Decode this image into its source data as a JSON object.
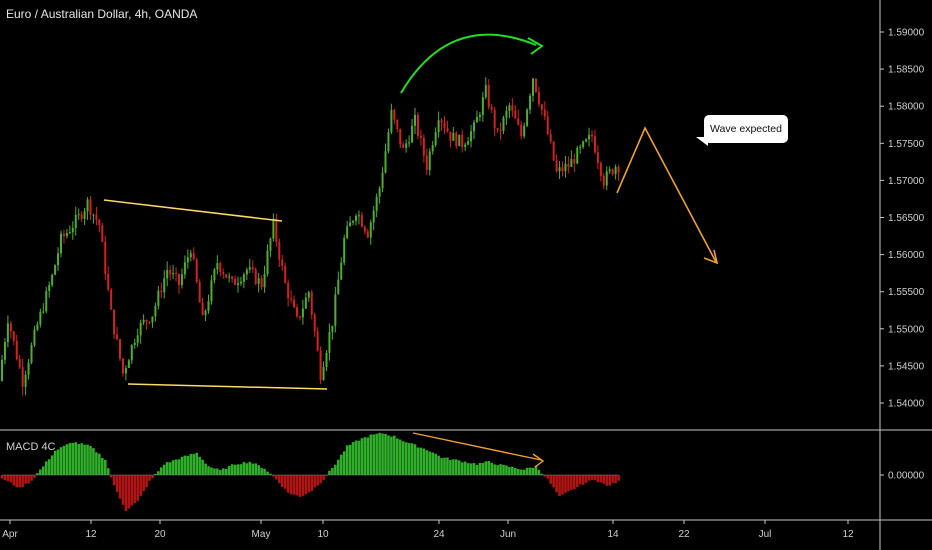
{
  "chart_data": {
    "type": "candlestick",
    "title": "Euro / Australian Dollar, 4h, OANDA",
    "price_axis": {
      "ticks": [
        "1.59000",
        "1.58500",
        "1.58000",
        "1.57500",
        "1.57000",
        "1.56500",
        "1.56000",
        "1.55500",
        "1.55000",
        "1.54500",
        "1.54000"
      ],
      "ylim": [
        1.537,
        1.5925
      ]
    },
    "macd_panel": {
      "label": "MACD 4C",
      "ticks": [
        "0.00000"
      ]
    },
    "time_axis": {
      "ticks": [
        "Apr",
        "12",
        "20",
        "May",
        "10",
        "24",
        "Jun",
        "14",
        "22",
        "Jul",
        "12"
      ]
    },
    "price_path": [
      {
        "i": 0,
        "v": 1.543
      },
      {
        "i": 3,
        "v": 1.5515
      },
      {
        "i": 8,
        "v": 1.543
      },
      {
        "i": 13,
        "v": 1.5505
      },
      {
        "i": 18,
        "v": 1.557
      },
      {
        "i": 21,
        "v": 1.562
      },
      {
        "i": 27,
        "v": 1.565
      },
      {
        "i": 30,
        "v": 1.567
      },
      {
        "i": 34,
        "v": 1.564
      },
      {
        "i": 38,
        "v": 1.552
      },
      {
        "i": 42,
        "v": 1.544
      },
      {
        "i": 47,
        "v": 1.55
      },
      {
        "i": 52,
        "v": 1.552
      },
      {
        "i": 57,
        "v": 1.558
      },
      {
        "i": 61,
        "v": 1.556
      },
      {
        "i": 65,
        "v": 1.561
      },
      {
        "i": 69,
        "v": 1.551
      },
      {
        "i": 74,
        "v": 1.559
      },
      {
        "i": 79,
        "v": 1.556
      },
      {
        "i": 84,
        "v": 1.558
      },
      {
        "i": 89,
        "v": 1.556
      },
      {
        "i": 93,
        "v": 1.564
      },
      {
        "i": 97,
        "v": 1.556
      },
      {
        "i": 101,
        "v": 1.551
      },
      {
        "i": 105,
        "v": 1.555
      },
      {
        "i": 109,
        "v": 1.544
      },
      {
        "i": 113,
        "v": 1.551
      },
      {
        "i": 117,
        "v": 1.562
      },
      {
        "i": 121,
        "v": 1.566
      },
      {
        "i": 125,
        "v": 1.563
      },
      {
        "i": 129,
        "v": 1.569
      },
      {
        "i": 133,
        "v": 1.579
      },
      {
        "i": 137,
        "v": 1.574
      },
      {
        "i": 141,
        "v": 1.578
      },
      {
        "i": 145,
        "v": 1.572
      },
      {
        "i": 149,
        "v": 1.579
      },
      {
        "i": 153,
        "v": 1.576
      },
      {
        "i": 157,
        "v": 1.575
      },
      {
        "i": 161,
        "v": 1.577
      },
      {
        "i": 165,
        "v": 1.582
      },
      {
        "i": 169,
        "v": 1.576
      },
      {
        "i": 173,
        "v": 1.58
      },
      {
        "i": 177,
        "v": 1.576
      },
      {
        "i": 181,
        "v": 1.584
      },
      {
        "i": 185,
        "v": 1.578
      },
      {
        "i": 189,
        "v": 1.571
      },
      {
        "i": 193,
        "v": 1.572
      },
      {
        "i": 197,
        "v": 1.574
      },
      {
        "i": 201,
        "v": 1.576
      },
      {
        "i": 205,
        "v": 1.57
      },
      {
        "i": 209,
        "v": 1.572
      }
    ],
    "macd_path": [
      {
        "i": 0,
        "v": -3
      },
      {
        "i": 6,
        "v": -12
      },
      {
        "i": 10,
        "v": -5
      },
      {
        "i": 14,
        "v": 8
      },
      {
        "i": 18,
        "v": 22
      },
      {
        "i": 24,
        "v": 30
      },
      {
        "i": 30,
        "v": 26
      },
      {
        "i": 35,
        "v": 14
      },
      {
        "i": 38,
        "v": -10
      },
      {
        "i": 42,
        "v": -32
      },
      {
        "i": 46,
        "v": -24
      },
      {
        "i": 50,
        "v": -6
      },
      {
        "i": 55,
        "v": 10
      },
      {
        "i": 61,
        "v": 16
      },
      {
        "i": 66,
        "v": 20
      },
      {
        "i": 70,
        "v": 8
      },
      {
        "i": 74,
        "v": 4
      },
      {
        "i": 79,
        "v": 10
      },
      {
        "i": 84,
        "v": 12
      },
      {
        "i": 89,
        "v": 6
      },
      {
        "i": 93,
        "v": -4
      },
      {
        "i": 97,
        "v": -16
      },
      {
        "i": 101,
        "v": -20
      },
      {
        "i": 105,
        "v": -14
      },
      {
        "i": 109,
        "v": -4
      },
      {
        "i": 113,
        "v": 10
      },
      {
        "i": 117,
        "v": 26
      },
      {
        "i": 121,
        "v": 32
      },
      {
        "i": 125,
        "v": 36
      },
      {
        "i": 129,
        "v": 38
      },
      {
        "i": 133,
        "v": 35
      },
      {
        "i": 137,
        "v": 30
      },
      {
        "i": 141,
        "v": 26
      },
      {
        "i": 145,
        "v": 22
      },
      {
        "i": 149,
        "v": 16
      },
      {
        "i": 153,
        "v": 14
      },
      {
        "i": 157,
        "v": 12
      },
      {
        "i": 161,
        "v": 10
      },
      {
        "i": 165,
        "v": 12
      },
      {
        "i": 169,
        "v": 9
      },
      {
        "i": 173,
        "v": 7
      },
      {
        "i": 177,
        "v": 5
      },
      {
        "i": 181,
        "v": 8
      },
      {
        "i": 185,
        "v": -4
      },
      {
        "i": 189,
        "v": -20
      },
      {
        "i": 193,
        "v": -14
      },
      {
        "i": 197,
        "v": -8
      },
      {
        "i": 201,
        "v": -4
      },
      {
        "i": 205,
        "v": -10
      },
      {
        "i": 209,
        "v": -6
      }
    ],
    "colors": {
      "background": "#000000",
      "up": "#4caf2e",
      "down": "#d42121",
      "macd_up": "#2fae2a",
      "macd_down": "#b01414",
      "channel_lines": "#ffd966",
      "curved_arrow": "#22dd22",
      "projection": "#f0a030",
      "divergence": "#f0a030",
      "axis_text": "#cfcfcf",
      "separator": "#c8c8c8"
    }
  },
  "annotations": {
    "bubble_text": "Wave expected"
  }
}
